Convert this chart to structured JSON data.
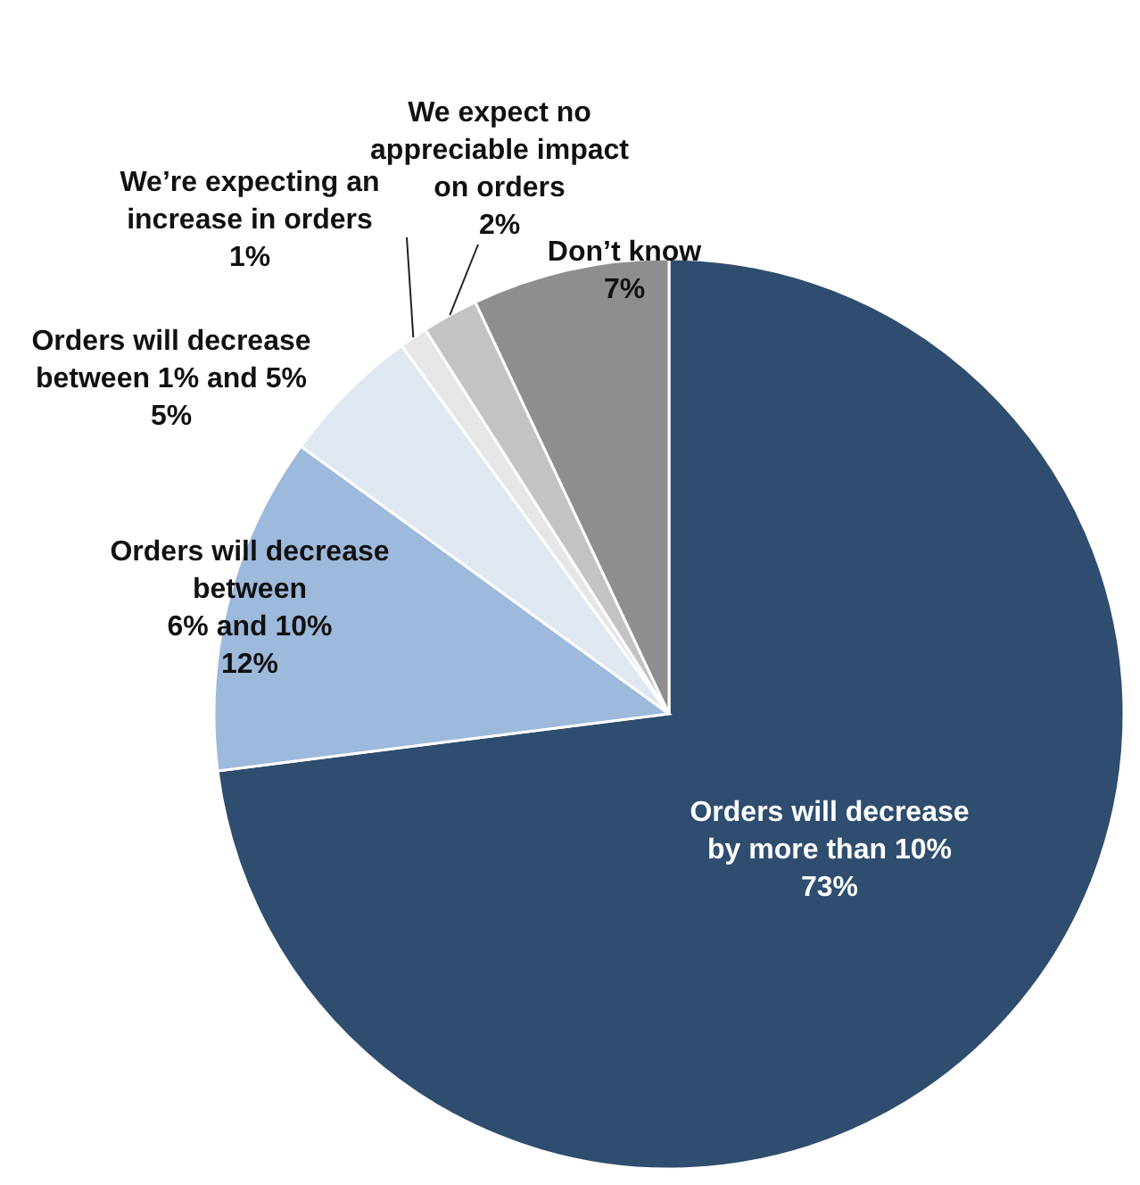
{
  "chart_data": {
    "type": "pie",
    "categories": [
      "Orders will decrease\nby more than 10%",
      "Orders will decrease\nbetween\n6% and 10%",
      "Orders will decrease\nbetween 1% and 5%",
      "We’re expecting an\nincrease in orders",
      "We expect no\nappreciable impact\non orders",
      "Don’t know"
    ],
    "values": [
      73,
      12,
      5,
      1,
      2,
      7
    ],
    "value_labels": [
      "73%",
      "12%",
      "5%",
      "1%",
      "2%",
      "7%"
    ],
    "colors": [
      "#2e4d6f",
      "#9db9dc",
      "#dfe7f1",
      "#e6e6e6",
      "#c3c3c3",
      "#8e8e8e"
    ]
  }
}
